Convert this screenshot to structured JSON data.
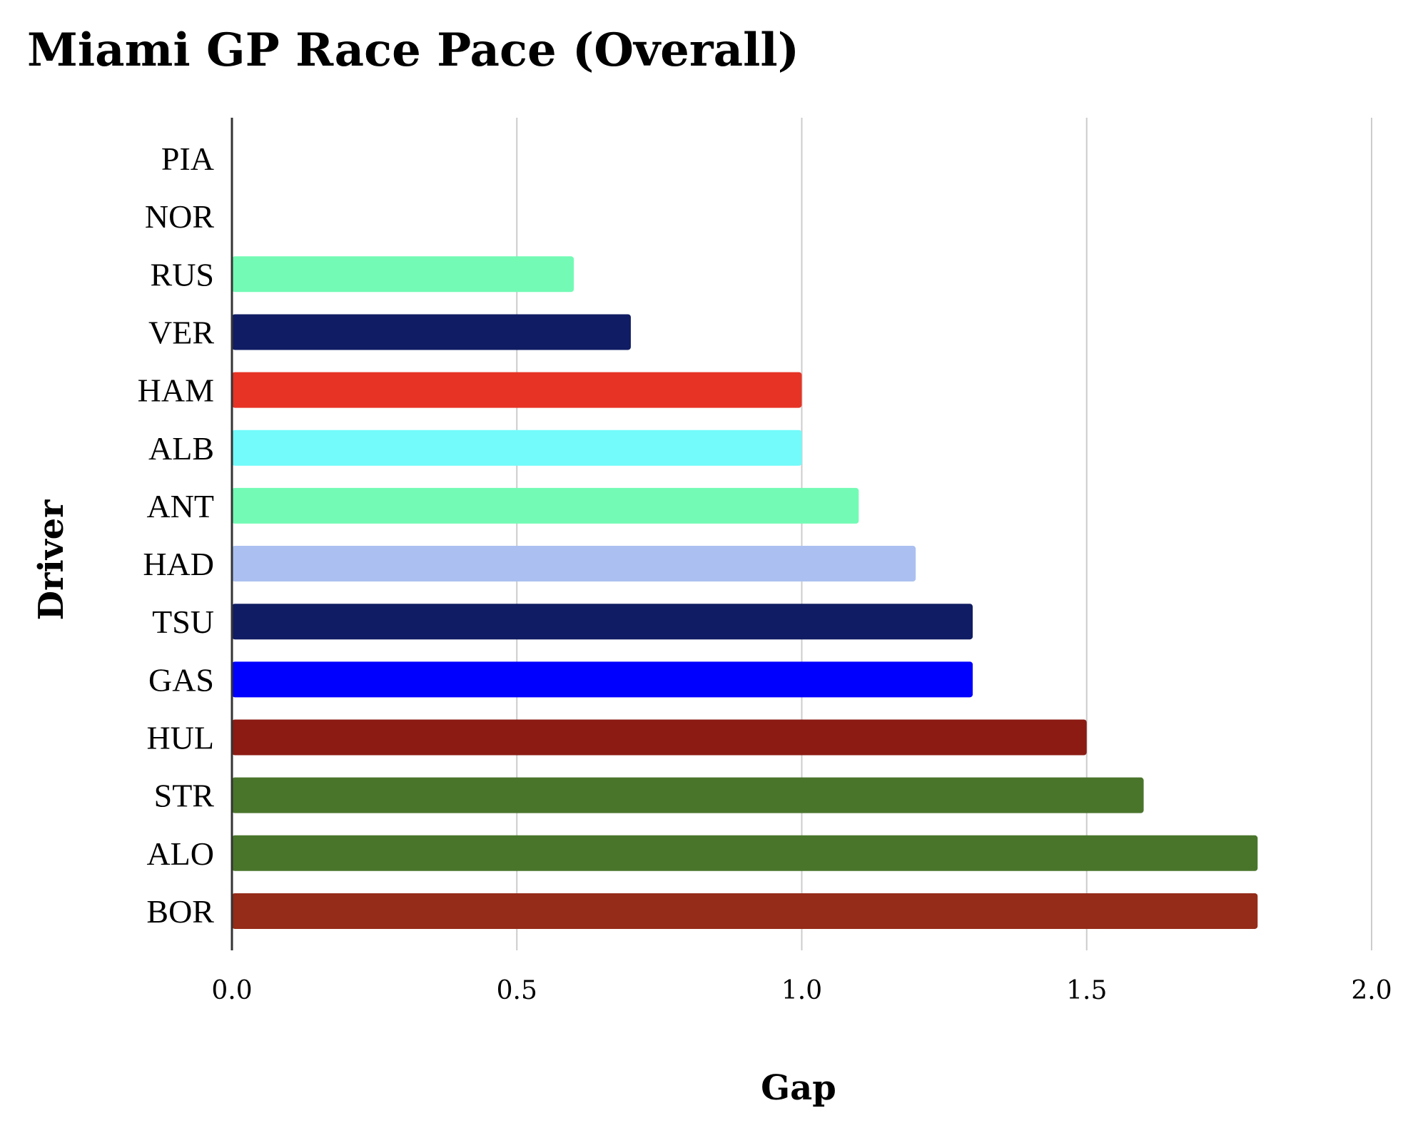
{
  "chart_data": {
    "type": "bar",
    "orientation": "horizontal",
    "title": "Miami GP Race Pace (Overall)",
    "xlabel": "Gap",
    "ylabel": "Driver",
    "xlim": [
      0,
      2.0
    ],
    "xticks": [
      "0.0",
      "0.5",
      "1.0",
      "1.5",
      "2.0"
    ],
    "xtick_values": [
      0,
      0.5,
      1.0,
      1.5,
      2.0
    ],
    "grid": "vertical",
    "categories": [
      "PIA",
      "NOR",
      "RUS",
      "VER",
      "HAM",
      "ALB",
      "ANT",
      "HAD",
      "TSU",
      "GAS",
      "HUL",
      "STR",
      "ALO",
      "BOR"
    ],
    "values": [
      0.0,
      0.0,
      0.6,
      0.7,
      1.0,
      1.0,
      1.1,
      1.2,
      1.3,
      1.3,
      1.5,
      1.6,
      1.8,
      1.8
    ],
    "colors": [
      "#ff8000",
      "#ff8000",
      "#73fbb5",
      "#101c63",
      "#e63325",
      "#73fbfb",
      "#73fbb5",
      "#abc0f0",
      "#101c63",
      "#0000ff",
      "#8b1b13",
      "#49752b",
      "#49752b",
      "#952b19"
    ]
  }
}
